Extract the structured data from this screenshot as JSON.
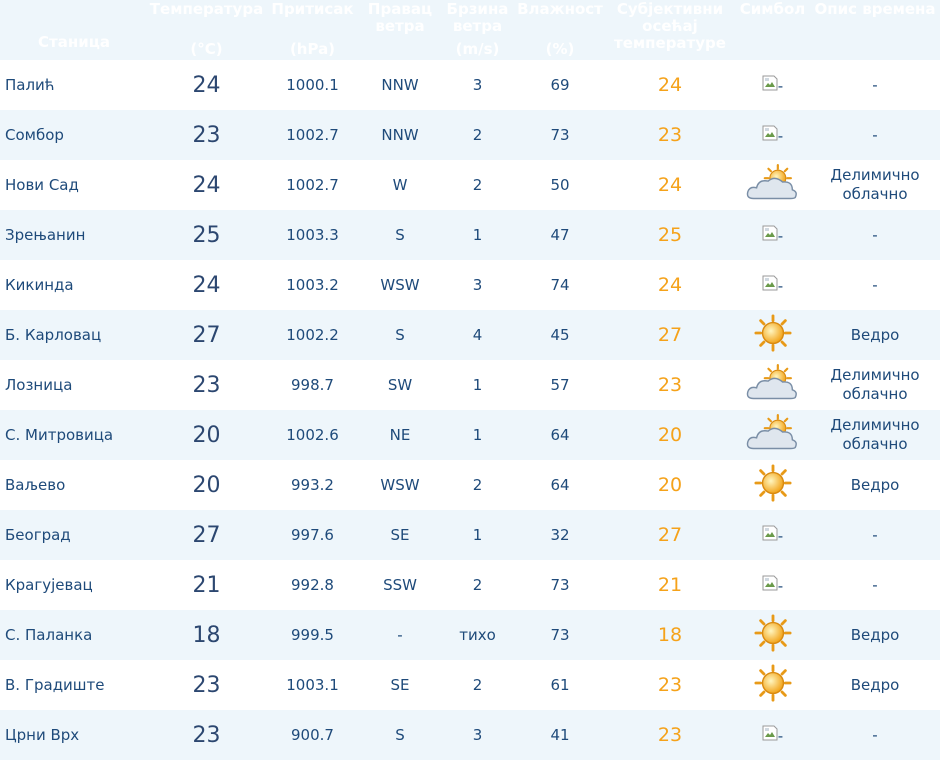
{
  "table": {
    "header": [
      [
        "Станица"
      ],
      [
        "Температура",
        "(°C)"
      ],
      [
        "Притисак",
        "(hPa)"
      ],
      [
        "Правац ветра"
      ],
      [
        "Брзина ветра",
        "(m/s)"
      ],
      [
        "Влажност",
        "(%)"
      ],
      [
        "Субјективни осећај температуре"
      ],
      [
        "Симбол"
      ],
      [
        "Опис времена"
      ]
    ],
    "rows": [
      [
        "Палић",
        24,
        1000.1,
        "NNW",
        3,
        69,
        24,
        "-",
        "-"
      ],
      [
        "Сомбор",
        23,
        1002.7,
        "NNW",
        2,
        73,
        23,
        "-",
        "-"
      ],
      [
        "Нови Сад",
        24,
        1002.7,
        "W",
        2,
        50,
        24,
        null,
        "Делимично облачно"
      ],
      [
        "Зрењанин",
        25,
        1003.3,
        "S",
        1,
        47,
        25,
        "-",
        "-"
      ],
      [
        "Кикинда",
        24,
        1003.2,
        "WSW",
        3,
        74,
        24,
        "-",
        "-"
      ],
      [
        "Б. Карловац",
        27,
        1002.2,
        "S",
        4,
        45,
        27,
        null,
        "Ведро"
      ],
      [
        "Лозница",
        23,
        998.7,
        "SW",
        1,
        57,
        23,
        null,
        "Делимично облачно"
      ],
      [
        "С. Митровица",
        20,
        1002.6,
        "NE",
        1,
        64,
        20,
        null,
        "Делимично облачно"
      ],
      [
        "Ваљево",
        20,
        993.2,
        "WSW",
        2,
        64,
        20,
        null,
        "Ведро"
      ],
      [
        "Београд",
        27,
        997.6,
        "SE",
        1,
        32,
        27,
        "-",
        "-"
      ],
      [
        "Крагујевац",
        21,
        992.8,
        "SSW",
        2,
        73,
        21,
        "-",
        "-"
      ],
      [
        "С. Паланка",
        18,
        999.5,
        "-",
        "тихо",
        73,
        18,
        null,
        "Ведро"
      ],
      [
        "В. Градиште",
        23,
        1003.1,
        "SE",
        2,
        61,
        23,
        null,
        "Ведро"
      ],
      [
        "Црни Врх",
        23,
        900.7,
        "S",
        3,
        41,
        23,
        "-",
        "-"
      ]
    ]
  }
}
